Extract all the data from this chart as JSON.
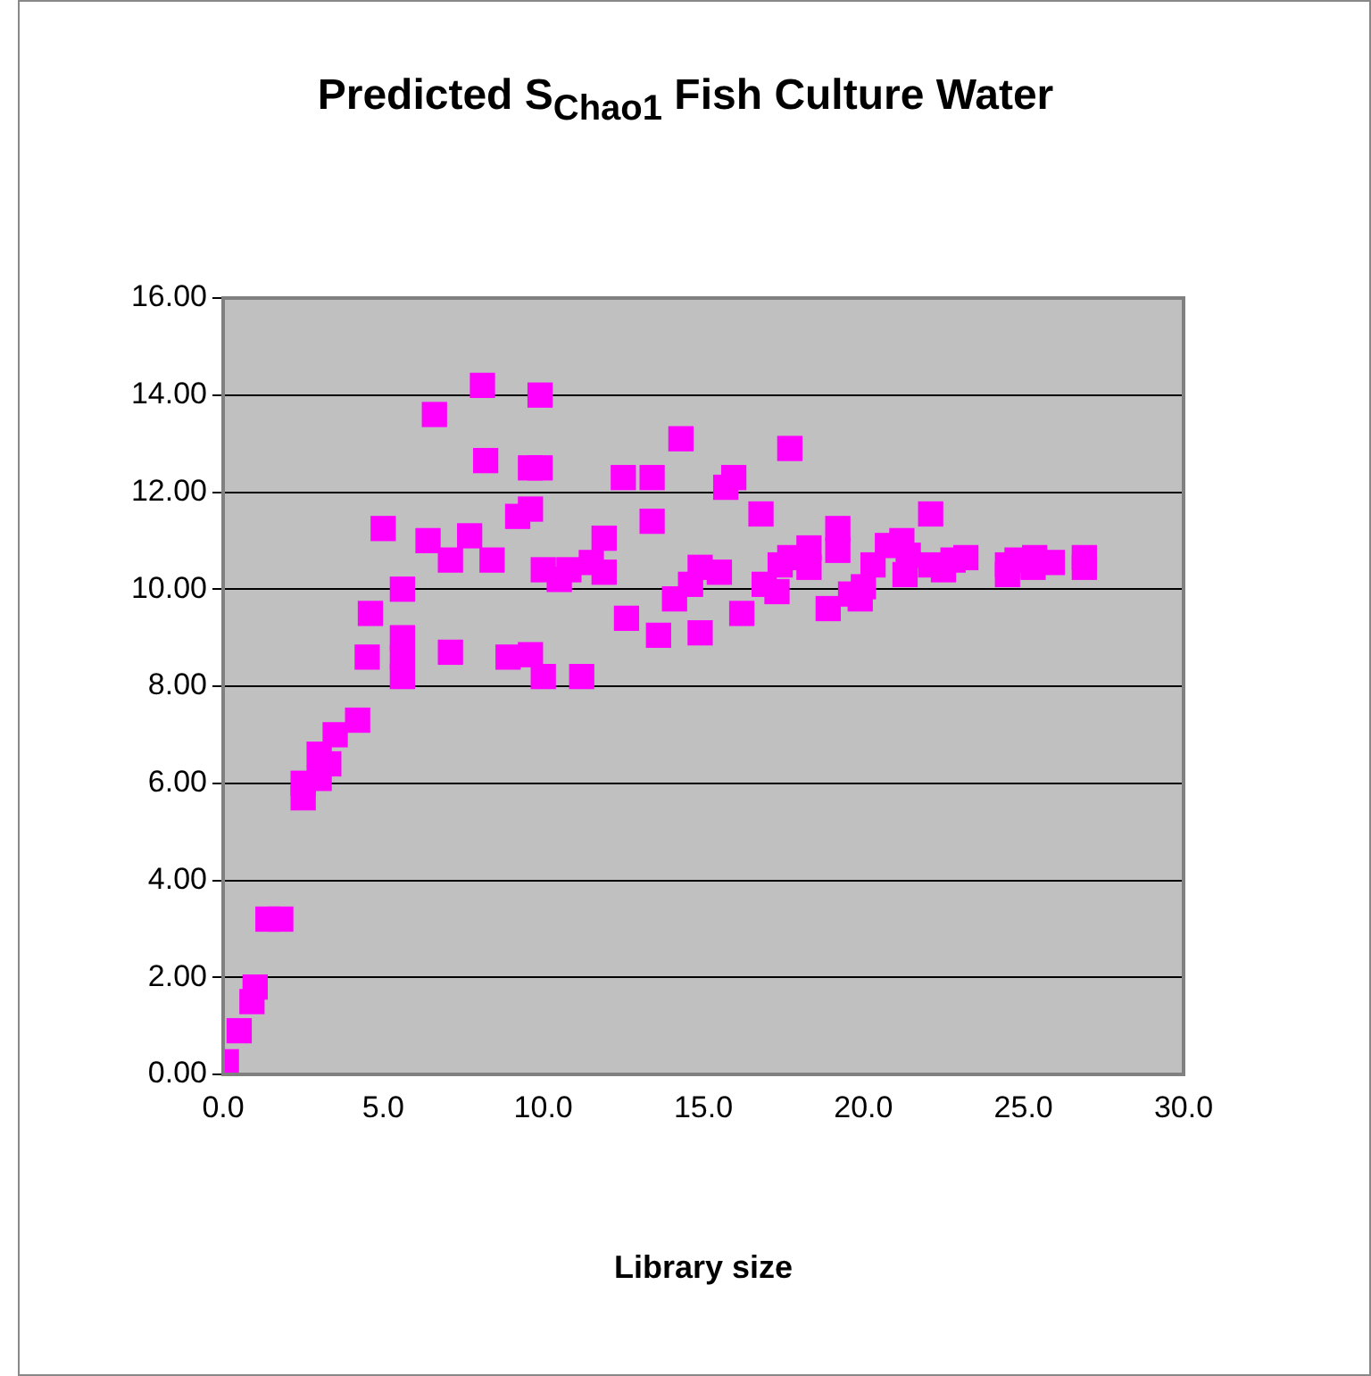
{
  "chart_data": {
    "type": "scatter",
    "title": "Predicted S$_{Chao1}$ Fish Culture Water",
    "xlabel": "Library size",
    "x": [
      0.1,
      0.5,
      0.9,
      1.0,
      1.4,
      1.8,
      2.5,
      2.5,
      3.0,
      3.0,
      3.3,
      3.5,
      4.2,
      4.5,
      4.6,
      5.0,
      5.6,
      5.6,
      5.6,
      5.6,
      6.4,
      6.6,
      7.1,
      7.1,
      7.7,
      8.1,
      8.2,
      8.4,
      8.9,
      9.2,
      9.6,
      9.6,
      9.6,
      9.9,
      9.9,
      10.0,
      10.0,
      10.5,
      10.8,
      11.2,
      11.5,
      11.9,
      11.9,
      12.5,
      12.6,
      13.4,
      13.4,
      13.6,
      14.1,
      14.3,
      14.6,
      14.9,
      14.9,
      15.5,
      15.7,
      15.95,
      16.2,
      16.8,
      16.9,
      17.3,
      17.4,
      17.7,
      17.7,
      18.3,
      18.3,
      18.9,
      19.2,
      19.2,
      19.6,
      19.9,
      20.0,
      20.3,
      20.75,
      21.2,
      21.3,
      21.4,
      22.1,
      22.1,
      22.5,
      22.8,
      23.2,
      24.5,
      24.5,
      24.8,
      25.35,
      25.3,
      25.9,
      26.9,
      26.9
    ],
    "series": [
      {
        "color": "#ff00ff",
        "values": [
          0.26,
          0.9,
          1.5,
          1.8,
          3.2,
          3.2,
          5.7,
          6.0,
          6.1,
          6.6,
          6.4,
          7.0,
          7.3,
          8.6,
          9.5,
          11.25,
          8.6,
          9.0,
          8.2,
          10.0,
          11.0,
          13.6,
          10.6,
          8.7,
          11.1,
          14.2,
          12.65,
          10.6,
          8.6,
          11.5,
          8.65,
          11.65,
          12.5,
          12.5,
          14.0,
          8.2,
          10.4,
          10.2,
          10.4,
          8.2,
          10.55,
          11.05,
          10.35,
          12.3,
          9.4,
          12.3,
          11.4,
          9.05,
          9.8,
          13.1,
          10.1,
          9.1,
          10.45,
          10.35,
          12.1,
          12.3,
          9.5,
          11.55,
          10.1,
          9.95,
          10.5,
          12.9,
          10.65,
          10.45,
          10.85,
          9.6,
          11.25,
          10.8,
          9.9,
          9.8,
          10.05,
          10.5,
          10.9,
          11.0,
          10.3,
          10.7,
          11.55,
          10.5,
          10.4,
          10.6,
          10.65,
          10.5,
          10.3,
          10.6,
          10.65,
          10.45,
          10.55,
          10.45,
          10.65
        ]
      }
    ],
    "xlim": [
      0,
      30
    ],
    "xticks": [
      {
        "value": 0,
        "label": "0.0"
      },
      {
        "value": 5,
        "label": "5.0"
      },
      {
        "value": 10,
        "label": "10.0"
      },
      {
        "value": 15,
        "label": "15.0"
      },
      {
        "value": 20,
        "label": "20.0"
      },
      {
        "value": 25,
        "label": "25.0"
      },
      {
        "value": 30,
        "label": "30.0"
      }
    ],
    "ylim": [
      0,
      16
    ],
    "yticks": [
      {
        "value": 0,
        "label": "0.00"
      },
      {
        "value": 2,
        "label": "2.00"
      },
      {
        "value": 4,
        "label": "4.00"
      },
      {
        "value": 6,
        "label": "6.00"
      },
      {
        "value": 8,
        "label": "8.00"
      },
      {
        "value": 10,
        "label": "10.00"
      },
      {
        "value": 12,
        "label": "12.00"
      },
      {
        "value": 14,
        "label": "14.00"
      },
      {
        "value": 16,
        "label": "16.00"
      }
    ],
    "grid": "y",
    "marker": "square",
    "legend": false
  }
}
